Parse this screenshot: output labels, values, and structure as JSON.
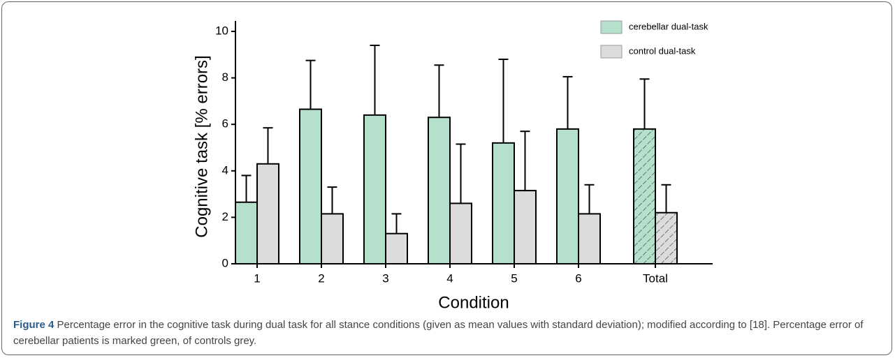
{
  "chart_data": {
    "type": "bar",
    "categories": [
      "1",
      "2",
      "3",
      "4",
      "5",
      "6",
      "Total"
    ],
    "hatched": [
      false,
      false,
      false,
      false,
      false,
      false,
      true
    ],
    "series": [
      {
        "name": "cerebellar dual-task",
        "color": "#b5e0cc",
        "values": [
          2.65,
          6.65,
          6.4,
          6.3,
          5.2,
          5.8,
          5.8
        ],
        "errors": [
          1.15,
          2.1,
          3.0,
          2.25,
          3.6,
          2.25,
          2.15
        ]
      },
      {
        "name": "control dual-task",
        "color": "#dcdcdc",
        "values": [
          4.3,
          2.15,
          1.3,
          2.6,
          3.15,
          2.15,
          2.2
        ],
        "errors": [
          1.55,
          1.15,
          0.85,
          2.55,
          2.55,
          1.25,
          1.2
        ]
      }
    ],
    "y_label": "Cognitive task [% errors]",
    "x_label": "Condition",
    "ylim": [
      0,
      10
    ],
    "yticks": [
      0,
      2,
      4,
      6,
      8,
      10
    ]
  },
  "caption": {
    "label": "Figure 4",
    "text": "Percentage error in the cognitive task during dual task for all stance conditions (given as mean values with standard deviation); modified according to [18]. Percentage error of cerebellar patients is marked green, of controls grey."
  }
}
